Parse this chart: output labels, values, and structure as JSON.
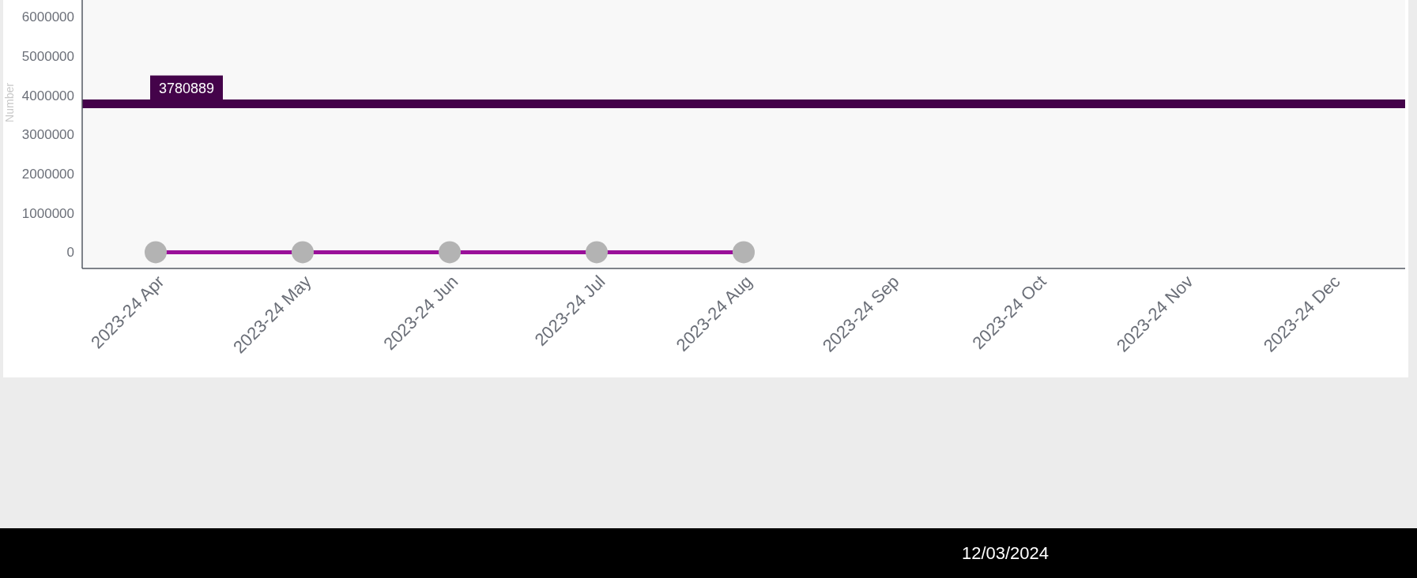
{
  "chart_data": {
    "type": "line",
    "ylabel": "Number",
    "categories": [
      "2023-24 Apr",
      "2023-24 May",
      "2023-24 Jun",
      "2023-24 Jul",
      "2023-24 Aug",
      "2023-24 Sep",
      "2023-24 Oct",
      "2023-24 Nov",
      "2023-24 Dec"
    ],
    "series": [
      {
        "color": "#990f99",
        "values": [
          0,
          0,
          0,
          0,
          0,
          null,
          null,
          null,
          null
        ]
      }
    ],
    "marker": "circle",
    "ylim": [
      -415000,
      6430000
    ],
    "yticks": [
      0,
      1000000,
      2000000,
      3000000,
      4000000,
      5000000,
      6000000
    ],
    "ref_lines": [
      {
        "axis": "y",
        "value": 3780889,
        "label": "3780889",
        "color": "#44034a"
      }
    ],
    "annotations": [
      "12/03/2024"
    ]
  }
}
